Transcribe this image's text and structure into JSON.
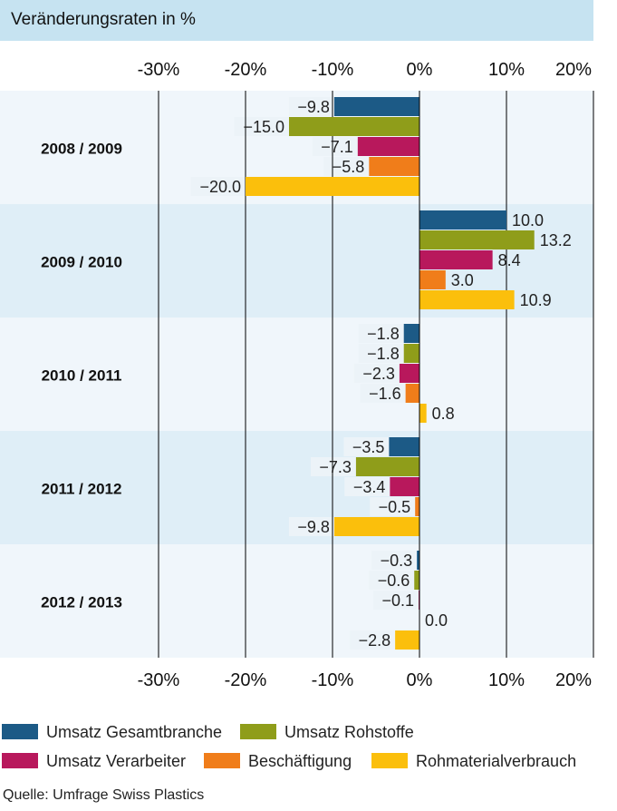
{
  "header": {
    "title": "Veränderungsraten in %"
  },
  "source": "Quelle: Umfrage Swiss Plastics",
  "colors": {
    "header_bg": "#c6e3f1",
    "band_a": "#f0f6fb",
    "band_b": "#dfeef7",
    "label_bg": "#ecf3f8"
  },
  "chart_data": {
    "type": "bar",
    "orientation": "horizontal",
    "categories": [
      "2008 / 2009",
      "2009 / 2010",
      "2010 / 2011",
      "2011 / 2012",
      "2012 / 2013"
    ],
    "xlim": [
      -30,
      20
    ],
    "x_ticks": [
      "-30%",
      "-20%",
      "-10%",
      "0%",
      "10%",
      "20%"
    ],
    "tick_values": [
      -30,
      -20,
      -10,
      0,
      10,
      20
    ],
    "legend_position": "bottom",
    "series": [
      {
        "name": "Umsatz Gesamtbranche",
        "color": "#1c5a86",
        "values": [
          -9.8,
          10.0,
          -1.8,
          -3.5,
          -0.3
        ],
        "labels": [
          "−9.8",
          "10.0",
          "−1.8",
          "−3.5",
          "−0.3"
        ]
      },
      {
        "name": "Umsatz Rohstoffe",
        "color": "#8f9d1a",
        "values": [
          -15.0,
          13.2,
          -1.8,
          -7.3,
          -0.6
        ],
        "labels": [
          "−15.0",
          "13.2",
          "−1.8",
          "−7.3",
          "−0.6"
        ]
      },
      {
        "name": "Umsatz Verarbeiter",
        "color": "#b8185c",
        "values": [
          -7.1,
          8.4,
          -2.3,
          -3.4,
          -0.1
        ],
        "labels": [
          "−7.1",
          "8.4",
          "−2.3",
          "−3.4",
          "−0.1"
        ]
      },
      {
        "name": "Beschäftigung",
        "color": "#f07d1a",
        "values": [
          -5.8,
          3.0,
          -1.6,
          -0.5,
          0.0
        ],
        "labels": [
          "−5.8",
          "3.0",
          "−1.6",
          "−0.5",
          "0.0"
        ]
      },
      {
        "name": "Rohmaterialverbrauch",
        "color": "#fbbf0c",
        "values": [
          -20.0,
          10.9,
          0.8,
          -9.8,
          -2.8
        ],
        "labels": [
          "−20.0",
          "10.9",
          "0.8",
          "−9.8",
          "−2.8"
        ]
      }
    ]
  }
}
